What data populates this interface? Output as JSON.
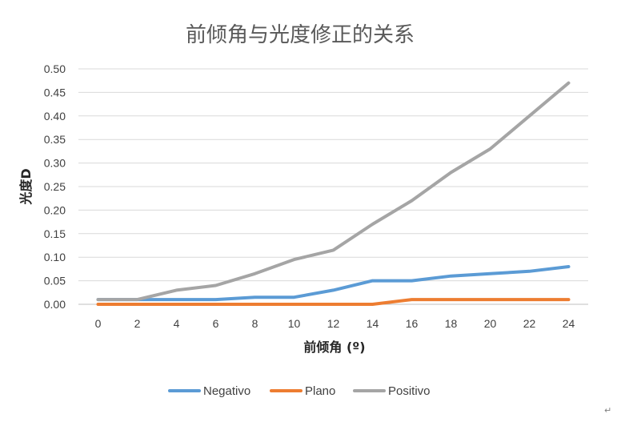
{
  "chart_data": {
    "type": "line",
    "title": "前倾角与光度修正的关系",
    "xlabel": "前倾角 (º)",
    "ylabel": "光度D",
    "x": [
      0,
      2,
      4,
      6,
      8,
      10,
      12,
      14,
      16,
      18,
      20,
      22,
      24
    ],
    "y_ticks": [
      "0.00",
      "0.05",
      "0.10",
      "0.15",
      "0.20",
      "0.25",
      "0.30",
      "0.35",
      "0.40",
      "0.45",
      "0.50"
    ],
    "ylim": [
      0,
      0.5
    ],
    "grid": true,
    "legend_position": "bottom",
    "series": [
      {
        "name": "Negativo",
        "color": "#5b9bd5",
        "values": [
          0.01,
          0.01,
          0.01,
          0.01,
          0.015,
          0.015,
          0.03,
          0.05,
          0.05,
          0.06,
          0.065,
          0.07,
          0.08
        ]
      },
      {
        "name": "Plano",
        "color": "#ed7d31",
        "values": [
          0,
          0,
          0,
          0,
          0,
          0,
          0,
          0,
          0.01,
          0.01,
          0.01,
          0.01,
          0.01
        ]
      },
      {
        "name": "Positivo",
        "color": "#a5a5a5",
        "values": [
          0.01,
          0.01,
          0.03,
          0.04,
          0.065,
          0.095,
          0.115,
          0.17,
          0.22,
          0.28,
          0.33,
          0.4,
          0.47
        ]
      }
    ]
  },
  "page_marks": {
    "corner_glyph": "↵"
  }
}
